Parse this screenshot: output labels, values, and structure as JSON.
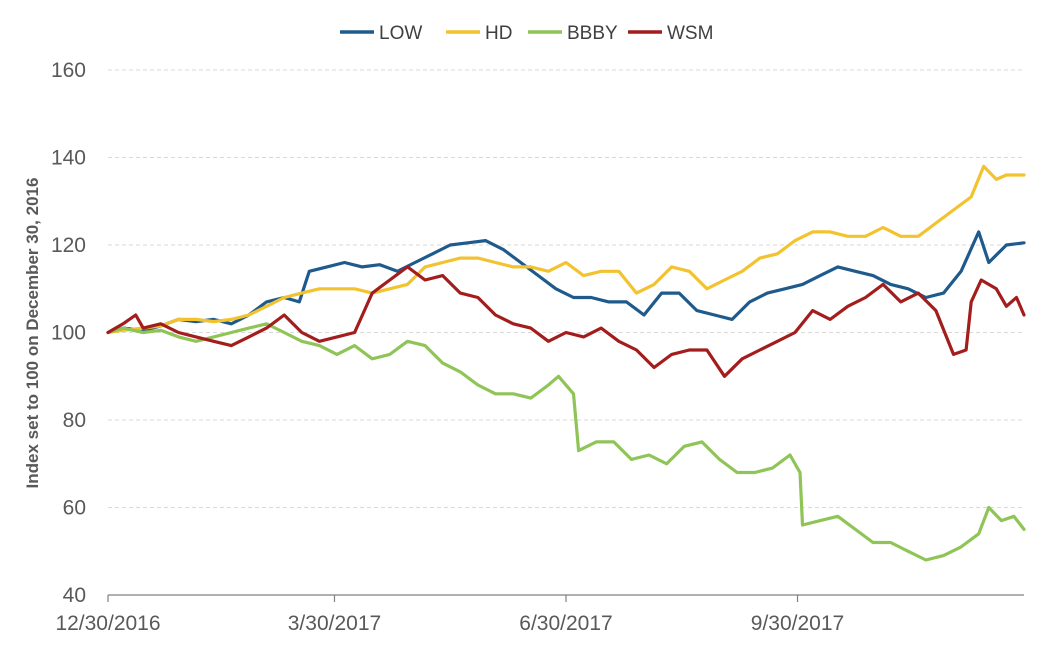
{
  "chart_data": {
    "type": "line",
    "title": "",
    "xlabel": "",
    "ylabel": "Index set to 100 on December 30, 2016",
    "ylim": [
      40,
      160
    ],
    "yticks": [
      40,
      60,
      80,
      100,
      120,
      140,
      160
    ],
    "x_range": [
      "2016-12-30",
      "2017-12-29"
    ],
    "x_ticks": [
      "2016-12-30",
      "2017-03-30",
      "2017-06-30",
      "2017-09-30"
    ],
    "x_tick_labels": [
      "12/30/2016",
      "3/30/2017",
      "6/30/2017",
      "9/30/2017"
    ],
    "grid": "horizontal dashed",
    "legend": "top-center",
    "series": [
      {
        "name": "LOW",
        "color": "#1f5a8c",
        "points": [
          [
            "2016-12-30",
            100
          ],
          [
            "2017-01-05",
            101
          ],
          [
            "2017-01-13",
            100.5
          ],
          [
            "2017-01-20",
            101.5
          ],
          [
            "2017-01-27",
            103
          ],
          [
            "2017-02-03",
            102.5
          ],
          [
            "2017-02-10",
            103
          ],
          [
            "2017-02-17",
            102
          ],
          [
            "2017-02-24",
            104
          ],
          [
            "2017-03-03",
            107
          ],
          [
            "2017-03-10",
            108
          ],
          [
            "2017-03-16",
            107
          ],
          [
            "2017-03-20",
            114
          ],
          [
            "2017-03-27",
            115
          ],
          [
            "2017-04-03",
            116
          ],
          [
            "2017-04-10",
            115
          ],
          [
            "2017-04-17",
            115.5
          ],
          [
            "2017-04-24",
            114
          ],
          [
            "2017-05-01",
            116
          ],
          [
            "2017-05-08",
            118
          ],
          [
            "2017-05-15",
            120
          ],
          [
            "2017-05-22",
            120.5
          ],
          [
            "2017-05-29",
            121
          ],
          [
            "2017-06-05",
            119
          ],
          [
            "2017-06-12",
            116
          ],
          [
            "2017-06-19",
            113
          ],
          [
            "2017-06-26",
            110
          ],
          [
            "2017-07-03",
            108
          ],
          [
            "2017-07-10",
            108
          ],
          [
            "2017-07-17",
            107
          ],
          [
            "2017-07-24",
            107
          ],
          [
            "2017-07-31",
            104
          ],
          [
            "2017-08-07",
            109
          ],
          [
            "2017-08-14",
            109
          ],
          [
            "2017-08-21",
            105
          ],
          [
            "2017-08-28",
            104
          ],
          [
            "2017-09-04",
            103
          ],
          [
            "2017-09-11",
            107
          ],
          [
            "2017-09-18",
            109
          ],
          [
            "2017-09-25",
            110
          ],
          [
            "2017-10-02",
            111
          ],
          [
            "2017-10-09",
            113
          ],
          [
            "2017-10-16",
            115
          ],
          [
            "2017-10-23",
            114
          ],
          [
            "2017-10-30",
            113
          ],
          [
            "2017-11-06",
            111
          ],
          [
            "2017-11-13",
            110
          ],
          [
            "2017-11-20",
            108
          ],
          [
            "2017-11-27",
            109
          ],
          [
            "2017-12-04",
            114
          ],
          [
            "2017-12-11",
            123
          ],
          [
            "2017-12-15",
            116
          ],
          [
            "2017-12-22",
            120
          ],
          [
            "2017-12-29",
            120.5
          ]
        ]
      },
      {
        "name": "HD",
        "color": "#f2c32e",
        "points": [
          [
            "2016-12-30",
            100
          ],
          [
            "2017-01-05",
            100.5
          ],
          [
            "2017-01-13",
            101
          ],
          [
            "2017-01-20",
            101.5
          ],
          [
            "2017-01-27",
            103
          ],
          [
            "2017-02-03",
            103
          ],
          [
            "2017-02-10",
            102.5
          ],
          [
            "2017-02-17",
            103
          ],
          [
            "2017-02-24",
            104
          ],
          [
            "2017-03-03",
            106
          ],
          [
            "2017-03-10",
            108
          ],
          [
            "2017-03-17",
            109
          ],
          [
            "2017-03-24",
            110
          ],
          [
            "2017-03-31",
            110
          ],
          [
            "2017-04-07",
            110
          ],
          [
            "2017-04-14",
            109
          ],
          [
            "2017-04-21",
            110
          ],
          [
            "2017-04-28",
            111
          ],
          [
            "2017-05-05",
            115
          ],
          [
            "2017-05-12",
            116
          ],
          [
            "2017-05-19",
            117
          ],
          [
            "2017-05-26",
            117
          ],
          [
            "2017-06-02",
            116
          ],
          [
            "2017-06-09",
            115
          ],
          [
            "2017-06-16",
            115
          ],
          [
            "2017-06-23",
            114
          ],
          [
            "2017-06-30",
            116
          ],
          [
            "2017-07-07",
            113
          ],
          [
            "2017-07-14",
            114
          ],
          [
            "2017-07-21",
            114
          ],
          [
            "2017-07-28",
            109
          ],
          [
            "2017-08-04",
            111
          ],
          [
            "2017-08-11",
            115
          ],
          [
            "2017-08-18",
            114
          ],
          [
            "2017-08-25",
            110
          ],
          [
            "2017-09-01",
            112
          ],
          [
            "2017-09-08",
            114
          ],
          [
            "2017-09-15",
            117
          ],
          [
            "2017-09-22",
            118
          ],
          [
            "2017-09-29",
            121
          ],
          [
            "2017-10-06",
            123
          ],
          [
            "2017-10-13",
            123
          ],
          [
            "2017-10-20",
            122
          ],
          [
            "2017-10-27",
            122
          ],
          [
            "2017-11-03",
            124
          ],
          [
            "2017-11-10",
            122
          ],
          [
            "2017-11-17",
            122
          ],
          [
            "2017-11-24",
            125
          ],
          [
            "2017-12-01",
            128
          ],
          [
            "2017-12-08",
            131
          ],
          [
            "2017-12-13",
            138
          ],
          [
            "2017-12-18",
            135
          ],
          [
            "2017-12-22",
            136
          ],
          [
            "2017-12-29",
            136
          ]
        ]
      },
      {
        "name": "BBBY",
        "color": "#8fc457",
        "points": [
          [
            "2016-12-30",
            100
          ],
          [
            "2017-01-05",
            101
          ],
          [
            "2017-01-13",
            100
          ],
          [
            "2017-01-20",
            100.5
          ],
          [
            "2017-01-27",
            99
          ],
          [
            "2017-02-03",
            98
          ],
          [
            "2017-02-10",
            99
          ],
          [
            "2017-02-17",
            100
          ],
          [
            "2017-02-24",
            101
          ],
          [
            "2017-03-03",
            102
          ],
          [
            "2017-03-10",
            100
          ],
          [
            "2017-03-17",
            98
          ],
          [
            "2017-03-24",
            97
          ],
          [
            "2017-03-31",
            95
          ],
          [
            "2017-04-07",
            97
          ],
          [
            "2017-04-14",
            94
          ],
          [
            "2017-04-21",
            95
          ],
          [
            "2017-04-28",
            98
          ],
          [
            "2017-05-05",
            97
          ],
          [
            "2017-05-12",
            93
          ],
          [
            "2017-05-19",
            91
          ],
          [
            "2017-05-26",
            88
          ],
          [
            "2017-06-02",
            86
          ],
          [
            "2017-06-09",
            86
          ],
          [
            "2017-06-16",
            85
          ],
          [
            "2017-06-23",
            88
          ],
          [
            "2017-06-27",
            90
          ],
          [
            "2017-07-03",
            86
          ],
          [
            "2017-07-05",
            73
          ],
          [
            "2017-07-12",
            75
          ],
          [
            "2017-07-19",
            75
          ],
          [
            "2017-07-26",
            71
          ],
          [
            "2017-08-02",
            72
          ],
          [
            "2017-08-09",
            70
          ],
          [
            "2017-08-16",
            74
          ],
          [
            "2017-08-23",
            75
          ],
          [
            "2017-08-30",
            71
          ],
          [
            "2017-09-06",
            68
          ],
          [
            "2017-09-13",
            68
          ],
          [
            "2017-09-20",
            69
          ],
          [
            "2017-09-27",
            72
          ],
          [
            "2017-10-01",
            68
          ],
          [
            "2017-10-02",
            56
          ],
          [
            "2017-10-09",
            57
          ],
          [
            "2017-10-16",
            58
          ],
          [
            "2017-10-23",
            55
          ],
          [
            "2017-10-30",
            52
          ],
          [
            "2017-11-06",
            52
          ],
          [
            "2017-11-13",
            50
          ],
          [
            "2017-11-20",
            48
          ],
          [
            "2017-11-27",
            49
          ],
          [
            "2017-12-04",
            51
          ],
          [
            "2017-12-11",
            54
          ],
          [
            "2017-12-15",
            60
          ],
          [
            "2017-12-20",
            57
          ],
          [
            "2017-12-25",
            58
          ],
          [
            "2017-12-29",
            55
          ]
        ]
      },
      {
        "name": "WSM",
        "color": "#a31d1d",
        "points": [
          [
            "2016-12-30",
            100
          ],
          [
            "2017-01-05",
            102
          ],
          [
            "2017-01-10",
            104
          ],
          [
            "2017-01-13",
            101
          ],
          [
            "2017-01-20",
            102
          ],
          [
            "2017-01-27",
            100
          ],
          [
            "2017-02-03",
            99
          ],
          [
            "2017-02-10",
            98
          ],
          [
            "2017-02-17",
            97
          ],
          [
            "2017-02-24",
            99
          ],
          [
            "2017-03-03",
            101
          ],
          [
            "2017-03-10",
            104
          ],
          [
            "2017-03-17",
            100
          ],
          [
            "2017-03-24",
            98
          ],
          [
            "2017-03-31",
            99
          ],
          [
            "2017-04-07",
            100
          ],
          [
            "2017-04-14",
            109
          ],
          [
            "2017-04-21",
            112
          ],
          [
            "2017-04-28",
            115
          ],
          [
            "2017-05-05",
            112
          ],
          [
            "2017-05-12",
            113
          ],
          [
            "2017-05-19",
            109
          ],
          [
            "2017-05-26",
            108
          ],
          [
            "2017-06-02",
            104
          ],
          [
            "2017-06-09",
            102
          ],
          [
            "2017-06-16",
            101
          ],
          [
            "2017-06-23",
            98
          ],
          [
            "2017-06-30",
            100
          ],
          [
            "2017-07-07",
            99
          ],
          [
            "2017-07-14",
            101
          ],
          [
            "2017-07-21",
            98
          ],
          [
            "2017-07-28",
            96
          ],
          [
            "2017-08-04",
            92
          ],
          [
            "2017-08-11",
            95
          ],
          [
            "2017-08-18",
            96
          ],
          [
            "2017-08-25",
            96
          ],
          [
            "2017-09-01",
            90
          ],
          [
            "2017-09-08",
            94
          ],
          [
            "2017-09-15",
            96
          ],
          [
            "2017-09-22",
            98
          ],
          [
            "2017-09-29",
            100
          ],
          [
            "2017-10-06",
            105
          ],
          [
            "2017-10-13",
            103
          ],
          [
            "2017-10-20",
            106
          ],
          [
            "2017-10-27",
            108
          ],
          [
            "2017-11-03",
            111
          ],
          [
            "2017-11-10",
            107
          ],
          [
            "2017-11-17",
            109
          ],
          [
            "2017-11-24",
            105
          ],
          [
            "2017-12-01",
            95
          ],
          [
            "2017-12-06",
            96
          ],
          [
            "2017-12-08",
            107
          ],
          [
            "2017-12-12",
            112
          ],
          [
            "2017-12-18",
            110
          ],
          [
            "2017-12-22",
            106
          ],
          [
            "2017-12-26",
            108
          ],
          [
            "2017-12-29",
            104
          ]
        ]
      }
    ]
  }
}
